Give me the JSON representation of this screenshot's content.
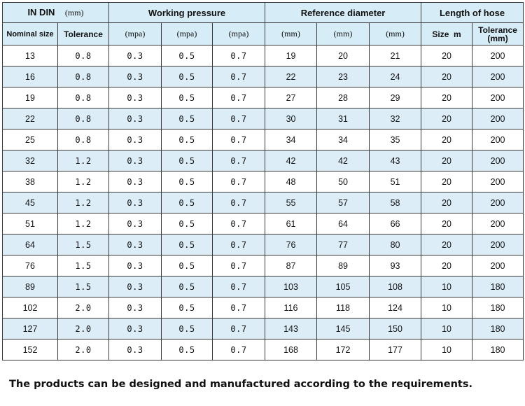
{
  "header": {
    "in_din": "IN DIN",
    "in_din_unit": "(mm)",
    "working_pressure": "Working pressure",
    "reference_diameter": "Reference diameter",
    "length_of_hose": "Length of hose",
    "nominal_size": "Nominal size",
    "tolerance": "Tolerance",
    "mpa1": "(mpa)",
    "mpa2": "(mpa)",
    "mpa3": "(mpa)",
    "mm1": "(mm)",
    "mm2": "(mm)",
    "mm3": "(mm)",
    "size_m": "Size  m",
    "tolerance_mm_line1": "Tolerance",
    "tolerance_mm_line2": "(mm)"
  },
  "rows": [
    {
      "nominal": "13",
      "tol": "0.8",
      "p1": "0.3",
      "p2": "0.5",
      "p3": "0.7",
      "d1": "19",
      "d2": "20",
      "d3": "21",
      "size": "20",
      "len_tol": "200"
    },
    {
      "nominal": "16",
      "tol": "0.8",
      "p1": "0.3",
      "p2": "0.5",
      "p3": "0.7",
      "d1": "22",
      "d2": "23",
      "d3": "24",
      "size": "20",
      "len_tol": "200"
    },
    {
      "nominal": "19",
      "tol": "0.8",
      "p1": "0.3",
      "p2": "0.5",
      "p3": "0.7",
      "d1": "27",
      "d2": "28",
      "d3": "29",
      "size": "20",
      "len_tol": "200"
    },
    {
      "nominal": "22",
      "tol": "0.8",
      "p1": "0.3",
      "p2": "0.5",
      "p3": "0.7",
      "d1": "30",
      "d2": "31",
      "d3": "32",
      "size": "20",
      "len_tol": "200"
    },
    {
      "nominal": "25",
      "tol": "0.8",
      "p1": "0.3",
      "p2": "0.5",
      "p3": "0.7",
      "d1": "34",
      "d2": "34",
      "d3": "35",
      "size": "20",
      "len_tol": "200"
    },
    {
      "nominal": "32",
      "tol": "1.2",
      "p1": "0.3",
      "p2": "0.5",
      "p3": "0.7",
      "d1": "42",
      "d2": "42",
      "d3": "43",
      "size": "20",
      "len_tol": "200"
    },
    {
      "nominal": "38",
      "tol": "1.2",
      "p1": "0.3",
      "p2": "0.5",
      "p3": "0.7",
      "d1": "48",
      "d2": "50",
      "d3": "51",
      "size": "20",
      "len_tol": "200"
    },
    {
      "nominal": "45",
      "tol": "1.2",
      "p1": "0.3",
      "p2": "0.5",
      "p3": "0.7",
      "d1": "55",
      "d2": "57",
      "d3": "58",
      "size": "20",
      "len_tol": "200"
    },
    {
      "nominal": "51",
      "tol": "1.2",
      "p1": "0.3",
      "p2": "0.5",
      "p3": "0.7",
      "d1": "61",
      "d2": "64",
      "d3": "66",
      "size": "20",
      "len_tol": "200"
    },
    {
      "nominal": "64",
      "tol": "1.5",
      "p1": "0.3",
      "p2": "0.5",
      "p3": "0.7",
      "d1": "76",
      "d2": "77",
      "d3": "80",
      "size": "20",
      "len_tol": "200"
    },
    {
      "nominal": "76",
      "tol": "1.5",
      "p1": "0.3",
      "p2": "0.5",
      "p3": "0.7",
      "d1": "87",
      "d2": "89",
      "d3": "93",
      "size": "20",
      "len_tol": "200"
    },
    {
      "nominal": "89",
      "tol": "1.5",
      "p1": "0.3",
      "p2": "0.5",
      "p3": "0.7",
      "d1": "103",
      "d2": "105",
      "d3": "108",
      "size": "10",
      "len_tol": "180"
    },
    {
      "nominal": "102",
      "tol": "2.0",
      "p1": "0.3",
      "p2": "0.5",
      "p3": "0.7",
      "d1": "116",
      "d2": "118",
      "d3": "124",
      "size": "10",
      "len_tol": "180"
    },
    {
      "nominal": "127",
      "tol": "2.0",
      "p1": "0.3",
      "p2": "0.5",
      "p3": "0.7",
      "d1": "143",
      "d2": "145",
      "d3": "150",
      "size": "10",
      "len_tol": "180"
    },
    {
      "nominal": "152",
      "tol": "2.0",
      "p1": "0.3",
      "p2": "0.5",
      "p3": "0.7",
      "d1": "168",
      "d2": "172",
      "d3": "177",
      "size": "10",
      "len_tol": "180"
    }
  ],
  "footer": "The products can be designed and manufactured according to the requirements.",
  "colors": {
    "header_bg": "#d6ecf7",
    "stripe_bg": "#dcedf8",
    "border": "#3a3a3a"
  }
}
